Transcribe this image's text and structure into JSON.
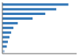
{
  "chart_data": {
    "type": "bar",
    "orientation": "horizontal",
    "categories": [
      null,
      null,
      null,
      null,
      null,
      null,
      null,
      null,
      null,
      null,
      null
    ],
    "values": [
      120,
      98,
      78,
      55,
      28,
      20,
      16,
      13,
      10,
      8,
      4
    ],
    "colors": [
      "#3579b8",
      "#3579b8",
      "#3579b8",
      "#3579b8",
      "#3579b8",
      "#3579b8",
      "#3579b8",
      "#3579b8",
      "#3579b8",
      "#3579b8",
      "#a0bedd"
    ],
    "xlim": [
      0,
      135
    ],
    "tick_labels": false
  }
}
